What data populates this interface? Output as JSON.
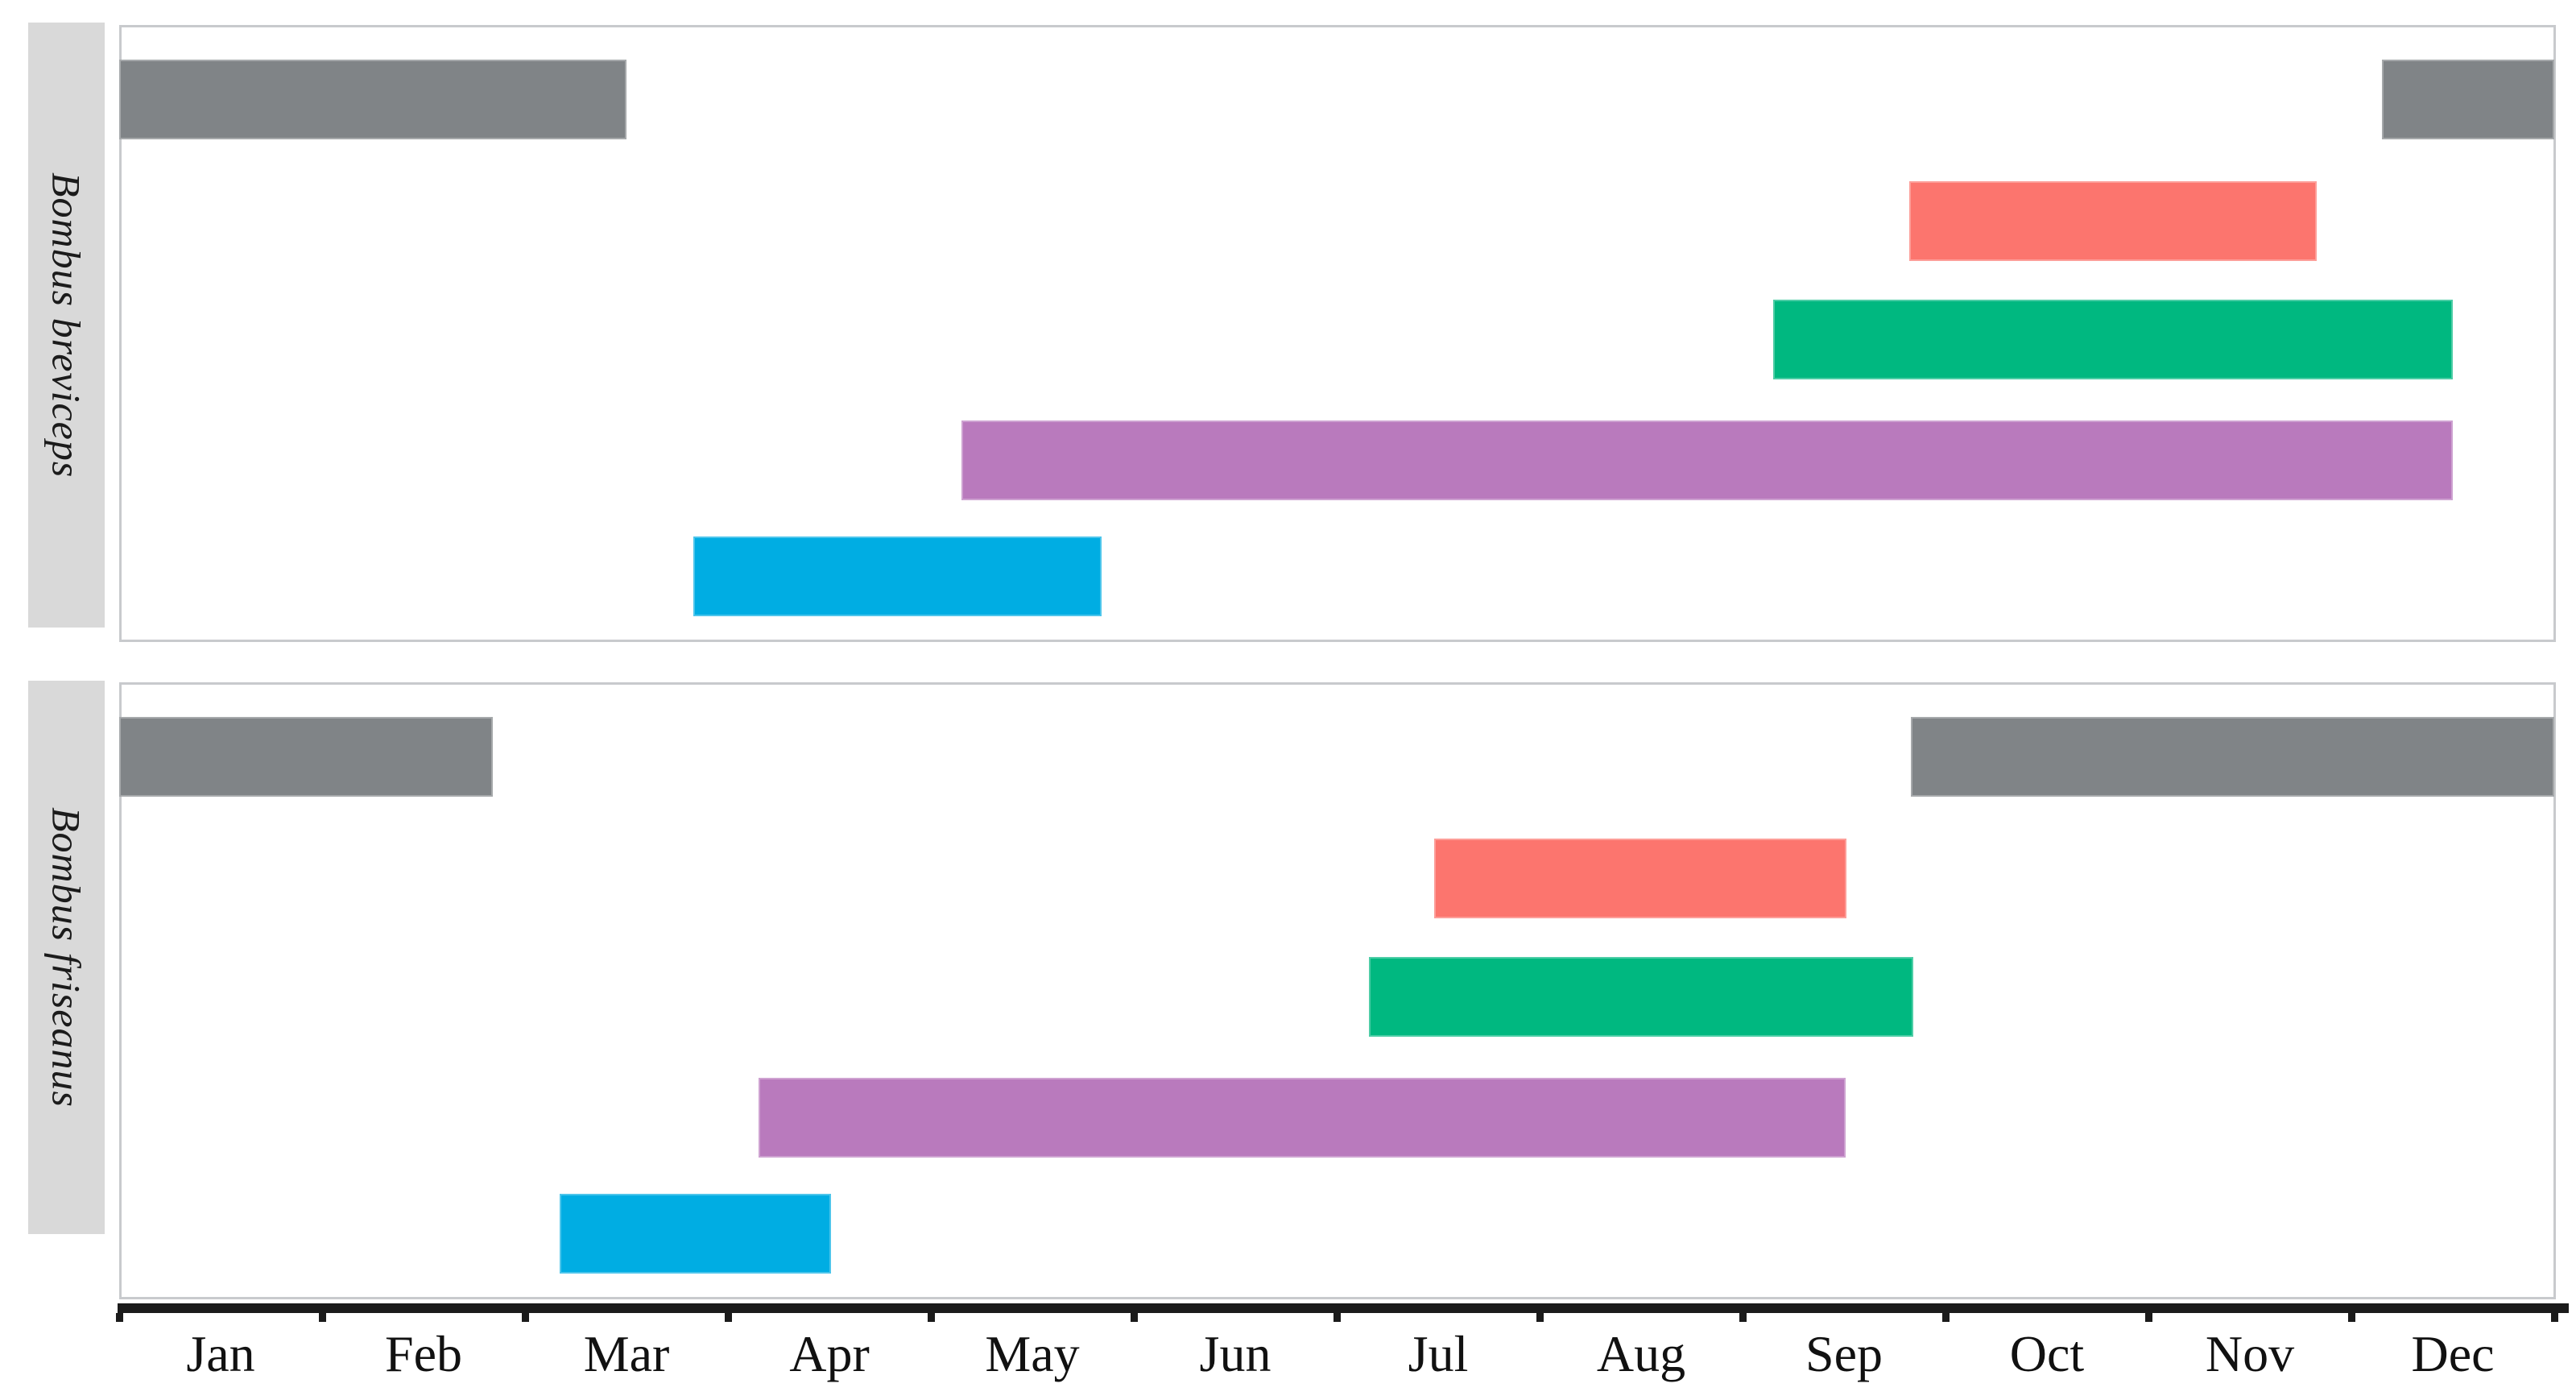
{
  "chart_data": {
    "type": "bar",
    "subtype": "gantt-phenology",
    "title": "",
    "x_axis": {
      "unit": "month",
      "range": [
        0,
        12
      ],
      "tick_labels": [
        "Jan",
        "Feb",
        "Mar",
        "Apr",
        "May",
        "Jun",
        "Jul",
        "Aug",
        "Sep",
        "Oct",
        "Nov",
        "Dec"
      ],
      "gridlines": false
    },
    "legend": "none",
    "colors": {
      "gray": "#808487",
      "coral": "#FC756E",
      "green": "#00B880",
      "purple": "#B97ABD",
      "blue": "#00ADE3"
    },
    "panels": [
      {
        "species": "Bombus breviceps",
        "bars": [
          {
            "row": 0,
            "color": "gray",
            "start": 0.0,
            "end": 2.5
          },
          {
            "row": 0,
            "color": "gray",
            "start": 11.15,
            "end": 12.0
          },
          {
            "row": 1,
            "color": "coral",
            "start": 8.82,
            "end": 10.83
          },
          {
            "row": 2,
            "color": "green",
            "start": 8.15,
            "end": 11.5
          },
          {
            "row": 3,
            "color": "purple",
            "start": 4.15,
            "end": 11.5
          },
          {
            "row": 4,
            "color": "blue",
            "start": 2.83,
            "end": 4.84
          }
        ]
      },
      {
        "species": "Bombus friseanus",
        "bars": [
          {
            "row": 0,
            "color": "gray",
            "start": 0.0,
            "end": 1.84
          },
          {
            "row": 0,
            "color": "gray",
            "start": 8.83,
            "end": 12.0
          },
          {
            "row": 1,
            "color": "coral",
            "start": 6.48,
            "end": 8.51
          },
          {
            "row": 2,
            "color": "green",
            "start": 6.16,
            "end": 8.84
          },
          {
            "row": 3,
            "color": "purple",
            "start": 3.15,
            "end": 8.51
          },
          {
            "row": 4,
            "color": "blue",
            "start": 2.17,
            "end": 3.51
          }
        ]
      }
    ]
  }
}
